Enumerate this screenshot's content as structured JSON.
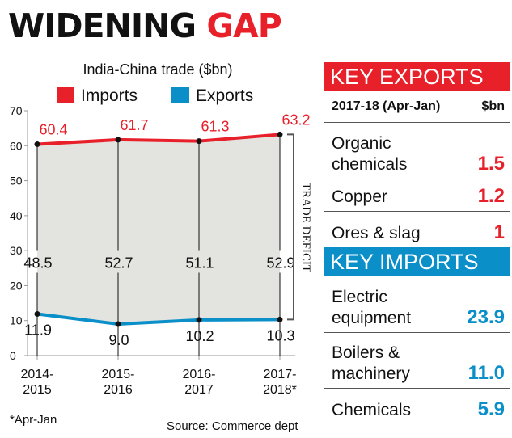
{
  "headline": {
    "part1": "WIDENING ",
    "part2": "GAP"
  },
  "colors": {
    "imports": "#e8202a",
    "exports": "#0b8fc9",
    "fill": "#e3e3e0",
    "text": "#111111"
  },
  "chart_data": {
    "type": "line",
    "title": "India-China trade ($bn)",
    "categories": [
      [
        "2014-",
        "2015"
      ],
      [
        "2015-",
        "2016"
      ],
      [
        "2016-",
        "2017"
      ],
      [
        "2017-",
        "2018*"
      ]
    ],
    "series": [
      {
        "name": "Imports",
        "values": [
          60.4,
          61.7,
          61.3,
          63.2
        ],
        "labels": [
          "60.4",
          "61.7",
          "61.3",
          "63.2"
        ]
      },
      {
        "name": "Exports",
        "values": [
          11.9,
          9.0,
          10.2,
          10.3
        ],
        "labels": [
          "11.9",
          "9.0",
          "10.2",
          "10.3"
        ]
      }
    ],
    "deficit_labels": [
      "48.5",
      "52.7",
      "51.1",
      "52.9"
    ],
    "yticks": [
      0,
      10,
      20,
      30,
      40,
      50,
      60,
      70
    ],
    "ylim": [
      0,
      70
    ],
    "bracket_label": "TRADE DEFICIT",
    "footnote": "*Apr-Jan",
    "source": "Source: Commerce dept"
  },
  "key_exports": {
    "title": "KEY EXPORTS",
    "period": "2017-18 (Apr-Jan)",
    "unit": "$bn",
    "items": [
      {
        "label": "Organic chemicals",
        "value": "1.5"
      },
      {
        "label": "Copper",
        "value": "1.2"
      },
      {
        "label": "Ores & slag",
        "value": "1"
      }
    ]
  },
  "key_imports": {
    "title": "KEY IMPORTS",
    "items": [
      {
        "label": "Electric equipment",
        "value": "23.9"
      },
      {
        "label": "Boilers & machinery",
        "value": "11.0"
      },
      {
        "label": "Chemicals",
        "value": "5.9"
      }
    ]
  }
}
